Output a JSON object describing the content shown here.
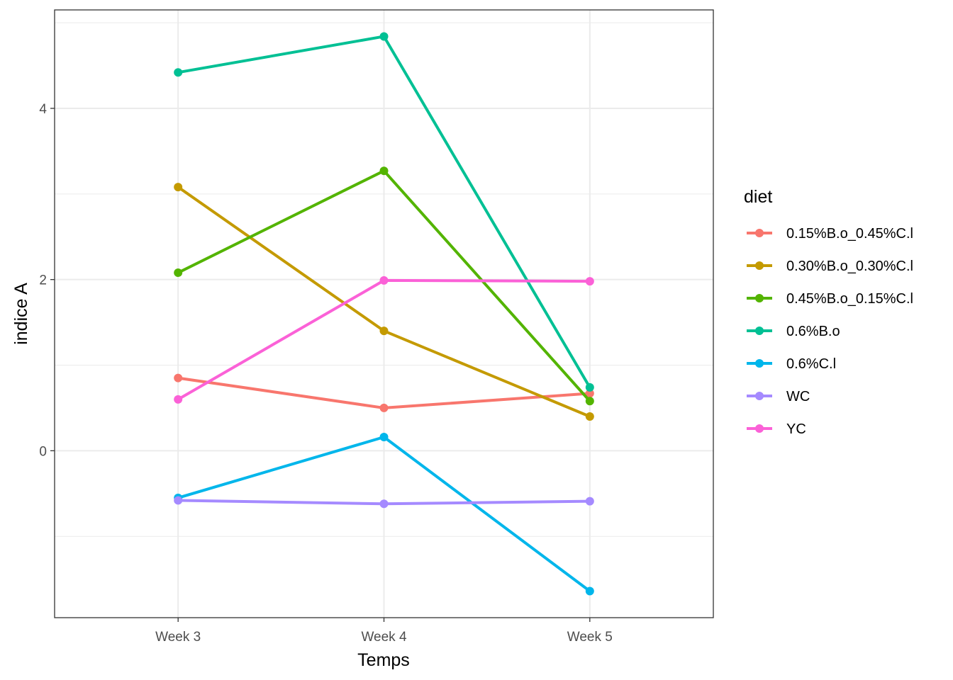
{
  "chart_data": {
    "type": "line",
    "xlabel": "Temps",
    "ylabel": "indice A",
    "categories": [
      "Week 3",
      "Week 4",
      "Week 5"
    ],
    "ylim": [
      -1.95,
      5.15
    ],
    "y_ticks": [
      0,
      2,
      4
    ],
    "y_tick_labels": [
      "0",
      "2",
      "4"
    ],
    "grid": true,
    "legend": {
      "title": "diet",
      "position": "right"
    },
    "series": [
      {
        "name": "0.15%B.o_0.45%C.l",
        "color": "#F8766D",
        "values": [
          0.85,
          0.5,
          0.67
        ]
      },
      {
        "name": "0.30%B.o_0.30%C.l",
        "color": "#C49A00",
        "values": [
          3.08,
          1.4,
          0.4
        ]
      },
      {
        "name": "0.45%B.o_0.15%C.l",
        "color": "#53B400",
        "values": [
          2.08,
          3.27,
          0.58
        ]
      },
      {
        "name": "0.6%B.o",
        "color": "#00C094",
        "values": [
          4.42,
          4.84,
          0.74
        ]
      },
      {
        "name": "0.6%C.l",
        "color": "#00B6EB",
        "values": [
          -0.55,
          0.16,
          -1.64
        ]
      },
      {
        "name": "WC",
        "color": "#A58AFF",
        "values": [
          -0.58,
          -0.62,
          -0.59
        ]
      },
      {
        "name": "YC",
        "color": "#FB61D7",
        "values": [
          0.6,
          1.99,
          1.98
        ]
      }
    ]
  }
}
